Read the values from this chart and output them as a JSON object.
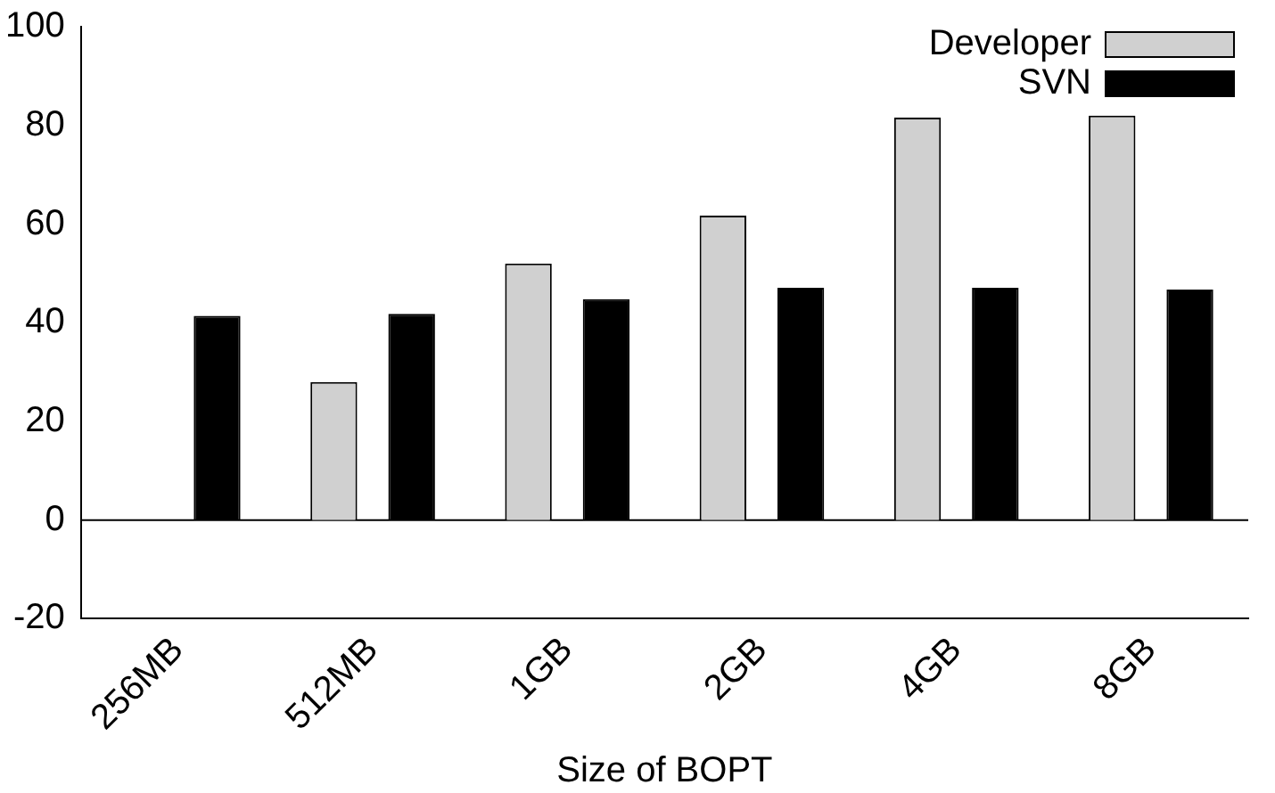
{
  "chart_data": {
    "type": "bar",
    "xlabel": "Size of BOPT",
    "categories": [
      "256MB",
      "512MB",
      "1GB",
      "2GB",
      "4GB",
      "8GB"
    ],
    "series": [
      {
        "name": "Developer",
        "color": "#d0d0d0",
        "values": [
          0,
          28,
          52,
          61.7,
          81.6,
          82
        ]
      },
      {
        "name": "SVN",
        "color": "#000000",
        "values": [
          41.4,
          41.8,
          44.8,
          47.1,
          47.1,
          46.7
        ]
      }
    ],
    "ylim": [
      -20,
      100
    ],
    "yticks": [
      -20,
      0,
      20,
      40,
      60,
      80,
      100
    ],
    "grid": false,
    "legend": "top right",
    "ref_lines": [
      {
        "axis": "y",
        "value": 0
      }
    ]
  }
}
